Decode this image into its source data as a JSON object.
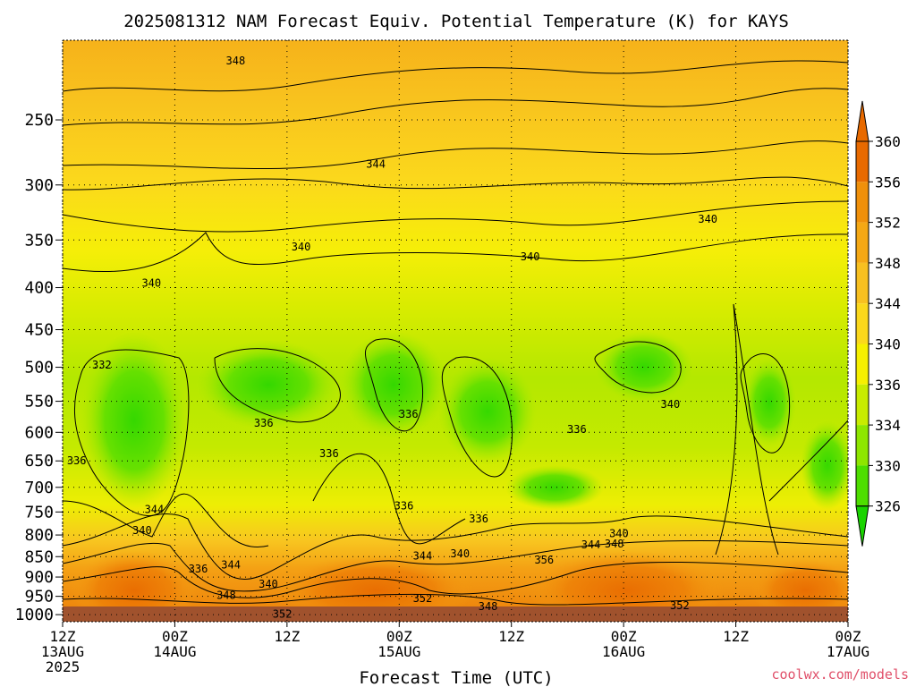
{
  "chart_data": {
    "type": "heatmap",
    "title": "2025081312 NAM Forecast Equiv. Potential Temperature (K) for KAYS",
    "xlabel": "Forecast Time (UTC)",
    "ylabel": "",
    "x_ticks": [
      {
        "hour": 0,
        "line1": "12Z",
        "line2": "13AUG",
        "line3": "2025"
      },
      {
        "hour": 12,
        "line1": "00Z",
        "line2": "14AUG",
        "line3": ""
      },
      {
        "hour": 24,
        "line1": "12Z",
        "line2": "",
        "line3": ""
      },
      {
        "hour": 36,
        "line1": "00Z",
        "line2": "15AUG",
        "line3": ""
      },
      {
        "hour": 48,
        "line1": "12Z",
        "line2": "",
        "line3": ""
      },
      {
        "hour": 60,
        "line1": "00Z",
        "line2": "16AUG",
        "line3": ""
      },
      {
        "hour": 72,
        "line1": "12Z",
        "line2": "",
        "line3": ""
      },
      {
        "hour": 84,
        "line1": "00Z",
        "line2": "17AUG",
        "line3": ""
      }
    ],
    "xlim": [
      0,
      84
    ],
    "y_ticks": [
      250,
      300,
      350,
      400,
      450,
      500,
      550,
      600,
      650,
      700,
      750,
      800,
      850,
      900,
      950,
      1000
    ],
    "ylim_hpa": [
      200,
      1020
    ],
    "y_scale": "log",
    "grid": true,
    "colorbar": {
      "labels": [
        360,
        356,
        352,
        348,
        344,
        340,
        336,
        334,
        330,
        326
      ],
      "colors": [
        "#e86a00",
        "#f0900a",
        "#f5a814",
        "#f8c020",
        "#fbd81c",
        "#f6f000",
        "#c8ec00",
        "#8ee600",
        "#4ede00",
        "#1ad400"
      ],
      "position": "right"
    },
    "contour_labels": [
      {
        "text": "348",
        "hour": 18.5,
        "hpa": 212
      },
      {
        "text": "344",
        "hour": 33.5,
        "hpa": 283
      },
      {
        "text": "340",
        "hour": 25.5,
        "hpa": 357
      },
      {
        "text": "340",
        "hour": 50,
        "hpa": 367
      },
      {
        "text": "340",
        "hour": 69,
        "hpa": 330
      },
      {
        "text": "340",
        "hour": 9.5,
        "hpa": 395
      },
      {
        "text": "332",
        "hour": 4.2,
        "hpa": 497
      },
      {
        "text": "336",
        "hour": 1.5,
        "hpa": 650
      },
      {
        "text": "336",
        "hour": 21.5,
        "hpa": 585
      },
      {
        "text": "336",
        "hour": 28.5,
        "hpa": 637
      },
      {
        "text": "336",
        "hour": 36.5,
        "hpa": 737
      },
      {
        "text": "336",
        "hour": 37,
        "hpa": 570
      },
      {
        "text": "336",
        "hour": 44.5,
        "hpa": 765
      },
      {
        "text": "336",
        "hour": 55,
        "hpa": 595
      },
      {
        "text": "340",
        "hour": 65,
        "hpa": 555
      },
      {
        "text": "344",
        "hour": 9.8,
        "hpa": 745
      },
      {
        "text": "340",
        "hour": 8.5,
        "hpa": 790
      },
      {
        "text": "336",
        "hour": 14.5,
        "hpa": 880
      },
      {
        "text": "344",
        "hour": 18,
        "hpa": 870
      },
      {
        "text": "348",
        "hour": 17.5,
        "hpa": 947
      },
      {
        "text": "340",
        "hour": 22,
        "hpa": 918
      },
      {
        "text": "344",
        "hour": 38.5,
        "hpa": 848
      },
      {
        "text": "340",
        "hour": 42.5,
        "hpa": 843
      },
      {
        "text": "352",
        "hour": 38.5,
        "hpa": 956
      },
      {
        "text": "352",
        "hour": 23.5,
        "hpa": 998
      },
      {
        "text": "348",
        "hour": 45.5,
        "hpa": 978
      },
      {
        "text": "356",
        "hour": 51.5,
        "hpa": 858
      },
      {
        "text": "344",
        "hour": 56.5,
        "hpa": 822
      },
      {
        "text": "348",
        "hour": 59,
        "hpa": 820
      },
      {
        "text": "340",
        "hour": 59.5,
        "hpa": 797
      },
      {
        "text": "352",
        "hour": 66,
        "hpa": 975
      }
    ]
  },
  "watermark": "coolwx.com/models"
}
